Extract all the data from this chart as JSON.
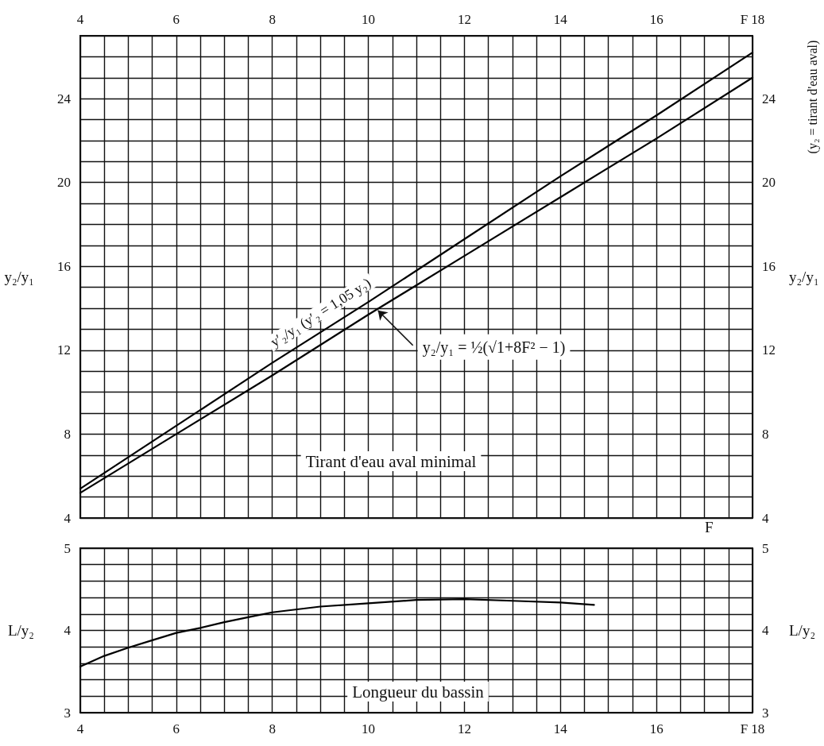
{
  "chart_data": [
    {
      "type": "line",
      "title": "Tirant d'eau aval minimal",
      "xlabel": "F",
      "ylabel": "y₂/y₁",
      "y2label": "y₂/y₁",
      "annotations": [
        {
          "text": "y′₂/y₁ (y′₂ = 1,05 y₂)",
          "x": 9.2,
          "y": 13.1
        },
        {
          "text": "y₂/y₁ = ½(√1+8F² − 1)",
          "x": 10.2,
          "y": 13.9
        },
        "(y₂ = tirant d'eau aval)"
      ],
      "x": [
        4,
        6,
        8,
        10,
        12,
        14,
        16,
        18
      ],
      "series": [
        {
          "color": "#000000",
          "values": [
            5.4,
            8.4,
            11.4,
            14.3,
            17.3,
            20.3,
            23.2,
            26.2
          ]
        },
        {
          "color": "#000000",
          "values": [
            5.2,
            8.0,
            10.8,
            13.7,
            16.5,
            19.3,
            22.1,
            25.0
          ]
        }
      ],
      "xlim": [
        4,
        18
      ],
      "x2lim": [
        4,
        18
      ],
      "x2ticks": [
        4,
        6,
        8,
        10,
        12,
        14,
        16,
        {
          "value": 18,
          "label": "F 18"
        }
      ],
      "ylim": [
        4,
        27
      ],
      "yticks": [
        4,
        8,
        12,
        16,
        20,
        24
      ],
      "y2lim": [
        4,
        27
      ],
      "y2ticks": [
        4,
        8,
        12,
        16,
        20,
        24
      ],
      "grid": true,
      "line_style": "solid"
    },
    {
      "type": "line",
      "title": "Longueur du bassin",
      "ylabel": "L/y₂",
      "y2label": "L/y₂",
      "x": [
        4,
        4.5,
        5,
        5.5,
        6,
        6.5,
        7,
        7.5,
        8,
        9,
        10,
        11,
        12,
        13,
        14,
        14.7
      ],
      "values": [
        3.56,
        3.69,
        3.79,
        3.88,
        3.97,
        4.03,
        4.1,
        4.16,
        4.22,
        4.29,
        4.33,
        4.37,
        4.38,
        4.36,
        4.34,
        4.31
      ],
      "color": "#000000",
      "xlim": [
        4,
        18
      ],
      "xticks": [
        4,
        6,
        8,
        10,
        12,
        14,
        16,
        {
          "value": 18,
          "label": "F 18"
        }
      ],
      "ylim": [
        3,
        5
      ],
      "yticks": [
        3,
        4,
        5
      ],
      "y2lim": [
        3,
        5
      ],
      "y2ticks": [
        3,
        4,
        5
      ],
      "grid": true,
      "line_style": "solid"
    }
  ]
}
